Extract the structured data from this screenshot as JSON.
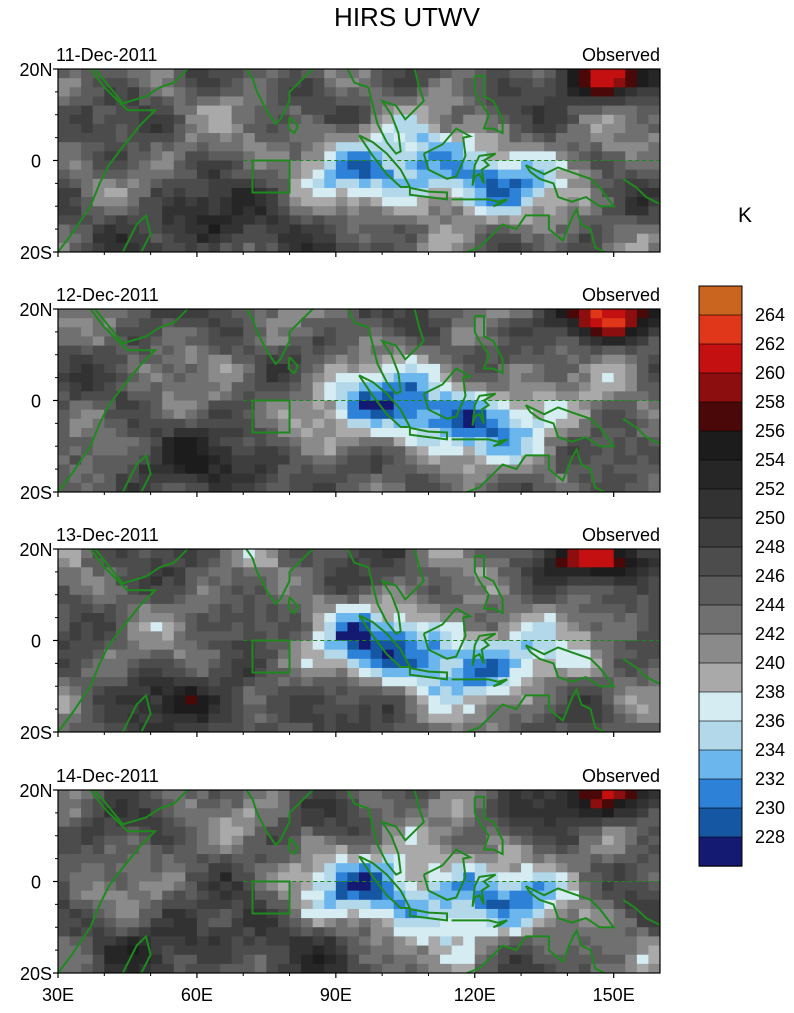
{
  "title": "HIRS UTWV",
  "unit": "K",
  "panels": [
    {
      "date": "11-Dec-2011",
      "label": "Observed",
      "seed": 11
    },
    {
      "date": "12-Dec-2011",
      "label": "Observed",
      "seed": 12
    },
    {
      "date": "13-Dec-2011",
      "label": "Observed",
      "seed": 13
    },
    {
      "date": "14-Dec-2011",
      "label": "Observed",
      "seed": 14
    }
  ],
  "y_ticks": [
    "20N",
    "0",
    "20S"
  ],
  "x_ticks": [
    "30E",
    "60E",
    "90E",
    "120E",
    "150E"
  ],
  "colorbar": {
    "labels": [
      "264",
      "262",
      "260",
      "258",
      "256",
      "254",
      "252",
      "250",
      "248",
      "246",
      "244",
      "242",
      "240",
      "238",
      "236",
      "234",
      "232",
      "230",
      "228"
    ],
    "colors": [
      "#c9651e",
      "#e0361a",
      "#c41010",
      "#8c0e0e",
      "#4a0808",
      "#1c1c1c",
      "#262626",
      "#323232",
      "#3e3e3e",
      "#4c4c4c",
      "#5c5c5c",
      "#707070",
      "#8a8a8a",
      "#a9a9a9",
      "#d4ecf2",
      "#b2d8ea",
      "#6cb6ee",
      "#2d82d8",
      "#1657a4",
      "#141a72"
    ]
  },
  "colors": {
    "coast": "#1e8a1e",
    "box": "#1e8a1e"
  }
}
